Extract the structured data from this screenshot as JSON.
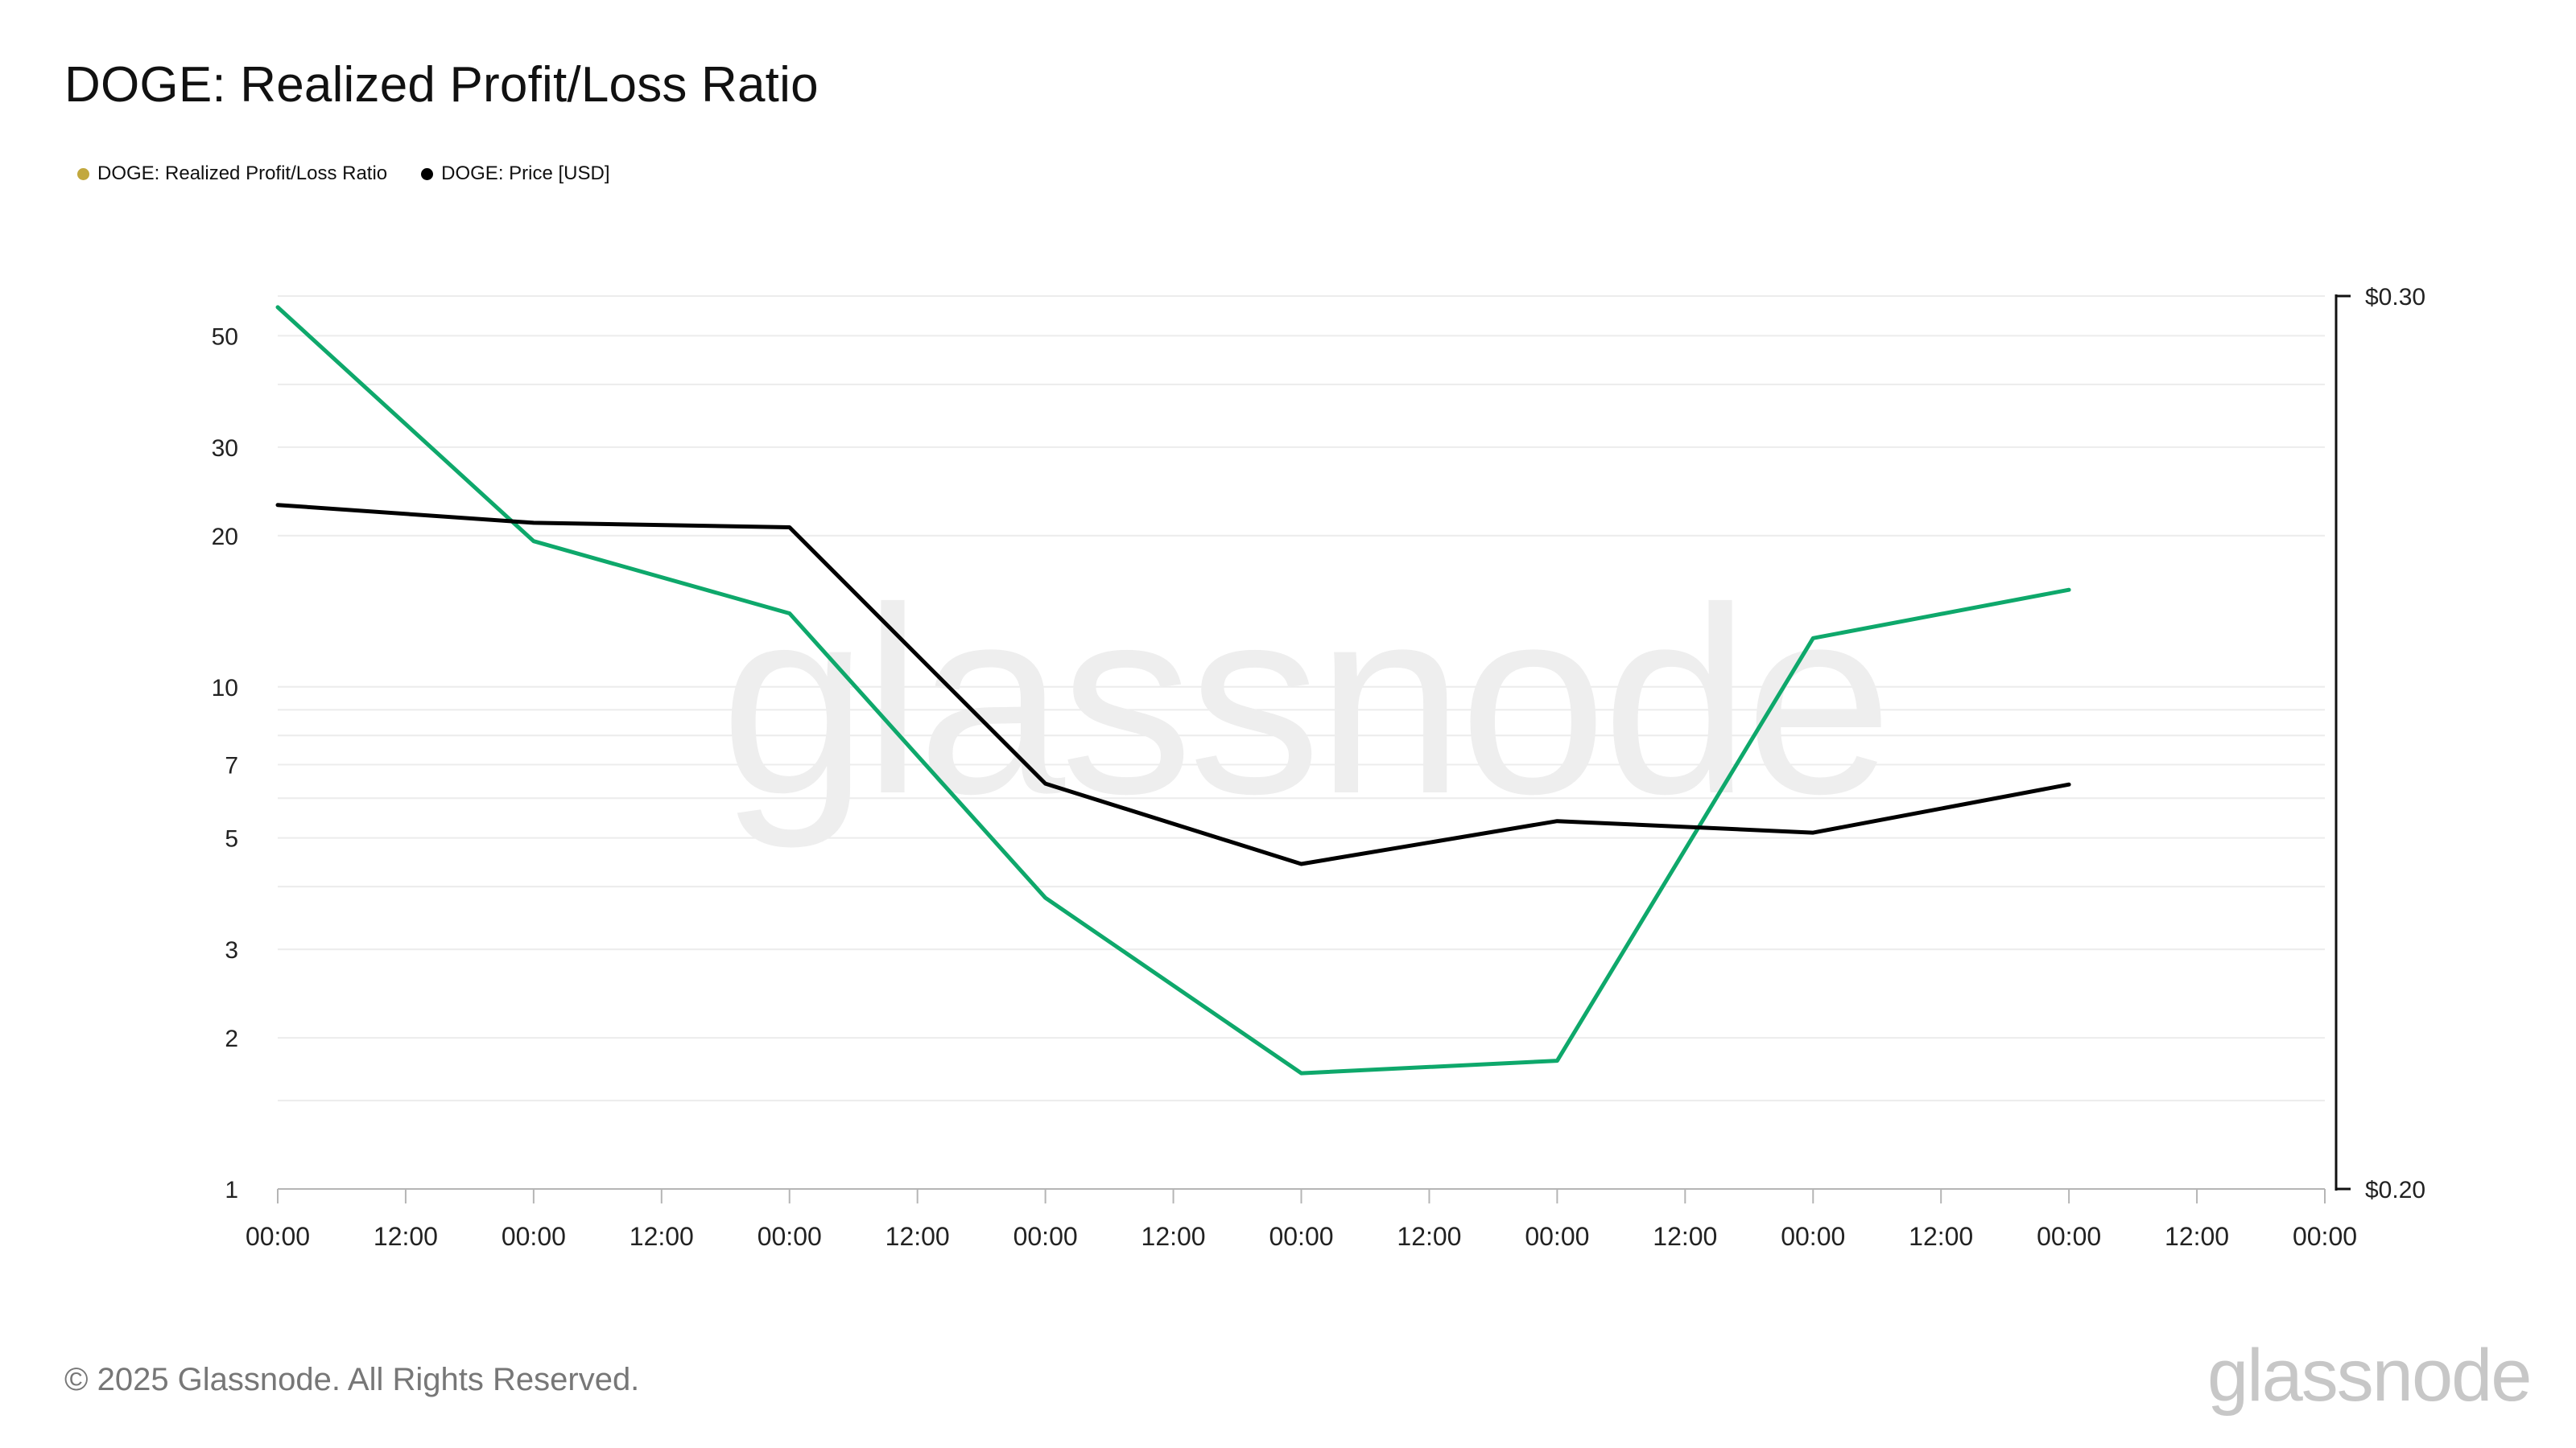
{
  "chart_data": {
    "type": "line",
    "title": "DOGE: Realized Profit/Loss Ratio",
    "x": [
      "00:00",
      "12:00",
      "00:00",
      "12:00",
      "00:00",
      "12:00",
      "00:00",
      "12:00",
      "00:00",
      "12:00",
      "00:00",
      "12:00",
      "00:00",
      "12:00",
      "00:00",
      "12:00",
      "00:00"
    ],
    "series": [
      {
        "name": "DOGE: Realized Profit/Loss Ratio",
        "axis": "left",
        "legend_color": "#c2a83e",
        "line_color": "#0ea86b",
        "values": [
          57,
          null,
          19.5,
          null,
          14,
          null,
          3.8,
          null,
          1.7,
          null,
          1.8,
          null,
          12.5,
          null,
          15.6,
          null,
          null
        ]
      },
      {
        "name": "DOGE: Price [USD]",
        "axis": "right",
        "legend_color": "#000000",
        "line_color": "#000000",
        "values": [
          0.2766,
          null,
          0.2746,
          null,
          0.2741,
          null,
          0.2454,
          null,
          0.2364,
          null,
          0.2412,
          null,
          0.2399,
          null,
          0.2453,
          null,
          null
        ]
      }
    ],
    "y_left": {
      "scale": "log",
      "ylim": [
        1,
        60
      ],
      "ticks": [
        1,
        2,
        3,
        5,
        7,
        10,
        20,
        30,
        50
      ],
      "tick_labels": [
        "1",
        "2",
        "3",
        "5",
        "7",
        "10",
        "20",
        "30",
        "50"
      ],
      "gridlines": [
        1.5,
        2,
        3,
        4,
        5,
        6,
        7,
        8,
        9,
        10,
        20,
        30,
        40,
        50
      ]
    },
    "y_right": {
      "ylim": [
        0.2,
        0.3
      ],
      "ticks": [
        0.2,
        0.3
      ],
      "tick_labels": [
        "$0.20",
        "$0.30"
      ]
    },
    "legend": "top-left",
    "grid": true,
    "watermark": "glassnode"
  },
  "footer": {
    "copyright": "© 2025 Glassnode. All Rights Reserved.",
    "brand": "glassnode"
  }
}
